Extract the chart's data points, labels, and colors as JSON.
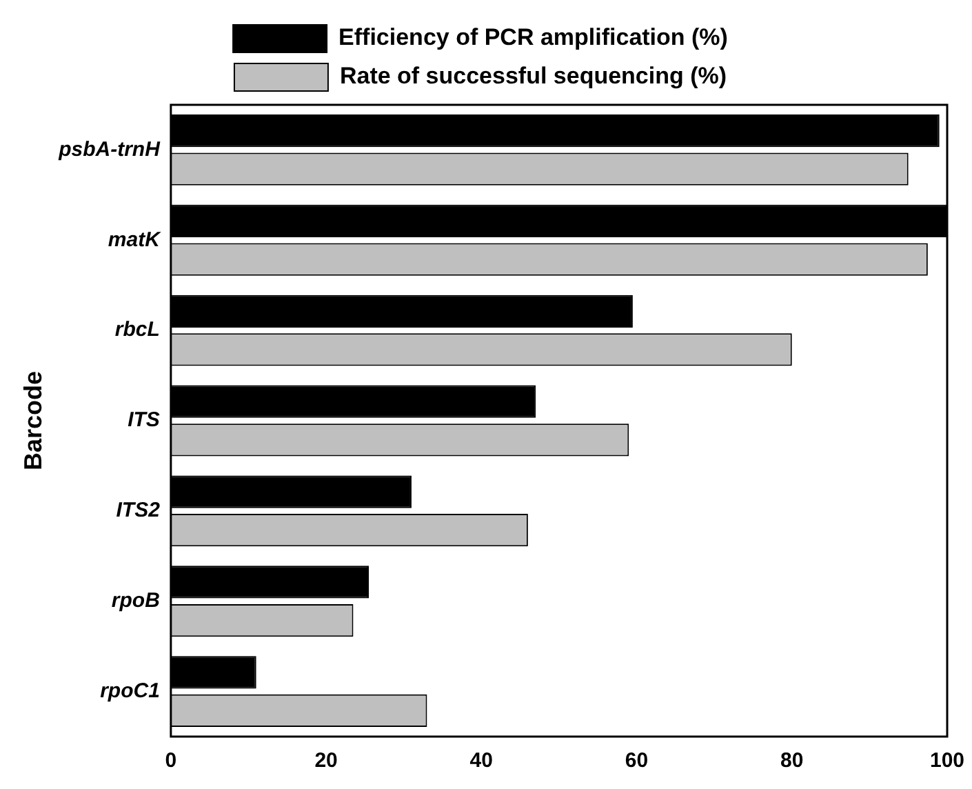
{
  "chart_data": {
    "type": "bar",
    "orientation": "horizontal",
    "ylabel": "Barcode",
    "categories": [
      "psbA-trnH",
      "matK",
      "rbcL",
      "ITS",
      "ITS2",
      "rpoB",
      "rpoC1"
    ],
    "series": [
      {
        "name": "Efficiency of PCR amplification (%)",
        "color": "#000000",
        "values": [
          99,
          100,
          59.5,
          47,
          31,
          25.5,
          11
        ]
      },
      {
        "name": "Rate of successful sequencing (%)",
        "color": "#bfbfbf",
        "values": [
          95,
          97.5,
          80,
          59,
          46,
          23.5,
          33
        ]
      }
    ],
    "xlim": [
      0,
      100
    ],
    "xticks": [
      0,
      20,
      40,
      60,
      80,
      100
    ],
    "grid": false,
    "legend": "top"
  }
}
